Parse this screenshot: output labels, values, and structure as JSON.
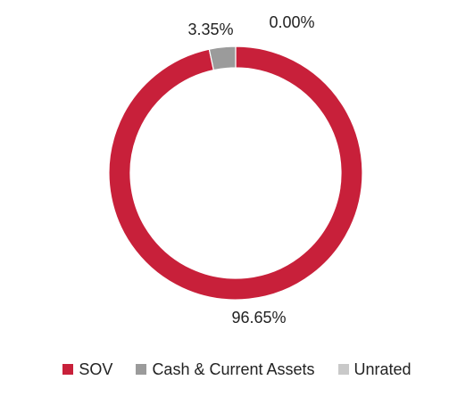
{
  "chart_data": {
    "type": "pie",
    "style": "donut",
    "title": "",
    "slices": [
      {
        "label": "SOV",
        "value": 96.65,
        "display": "96.65%",
        "color": "#c8203a"
      },
      {
        "label": "Cash & Current Assets",
        "value": 3.35,
        "display": "3.35%",
        "color": "#9b9b9b"
      },
      {
        "label": "Unrated",
        "value": 0.0,
        "display": "0.00%",
        "color": "#c9c9c9"
      }
    ],
    "legend_position": "bottom"
  }
}
